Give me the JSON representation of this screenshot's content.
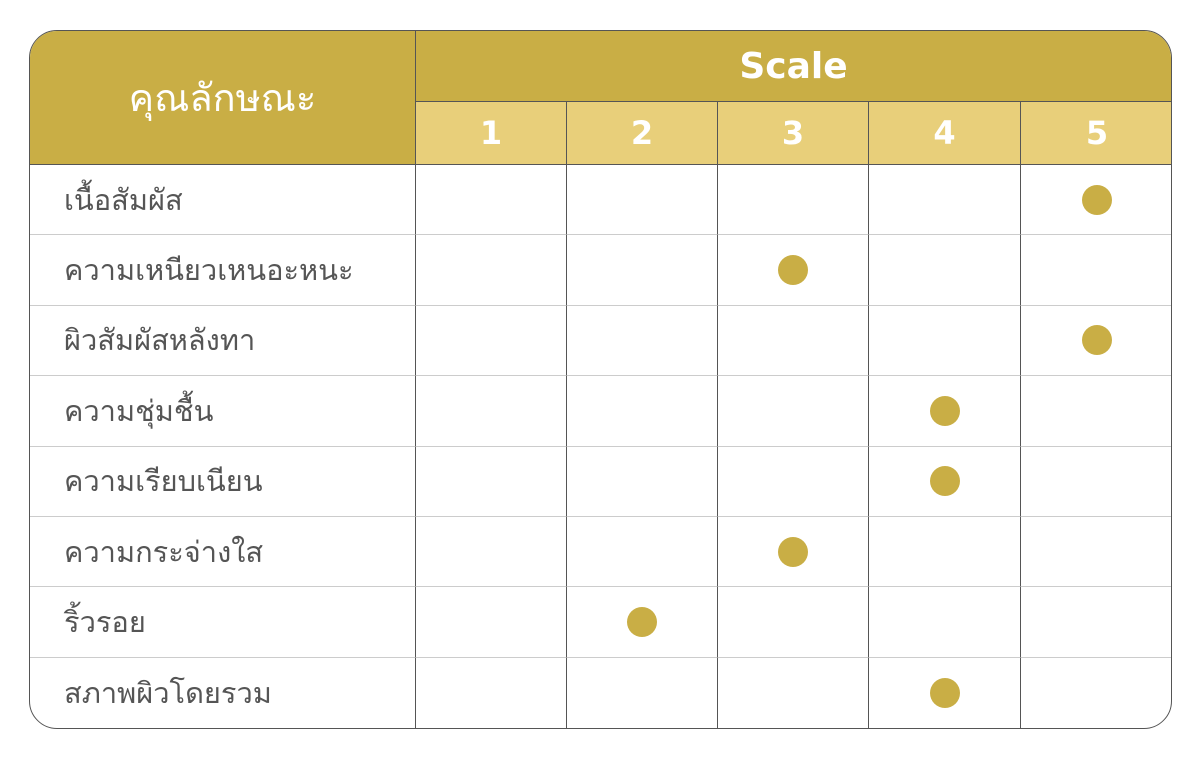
{
  "header": {
    "attribute_title": "คุณลักษณะ",
    "scale_title": "Scale",
    "scale_levels": [
      "1",
      "2",
      "3",
      "4",
      "5"
    ]
  },
  "colors": {
    "header_dark": "#C9AE45",
    "header_light": "#E8CF7A",
    "marker": "#C9AE45"
  },
  "rows": [
    {
      "label": "เนื้อสัมผัส",
      "rating": 5
    },
    {
      "label": "ความเหนียวเหนอะหนะ",
      "rating": 3
    },
    {
      "label": "ผิวสัมผัสหลังทา",
      "rating": 5
    },
    {
      "label": "ความชุ่มชื้น",
      "rating": 4
    },
    {
      "label": "ความเรียบเนียน",
      "rating": 4
    },
    {
      "label": "ความกระจ่างใส",
      "rating": 3
    },
    {
      "label": "ริ้วรอย",
      "rating": 2
    },
    {
      "label": "สภาพผิวโดยรวม",
      "rating": 4
    }
  ]
}
